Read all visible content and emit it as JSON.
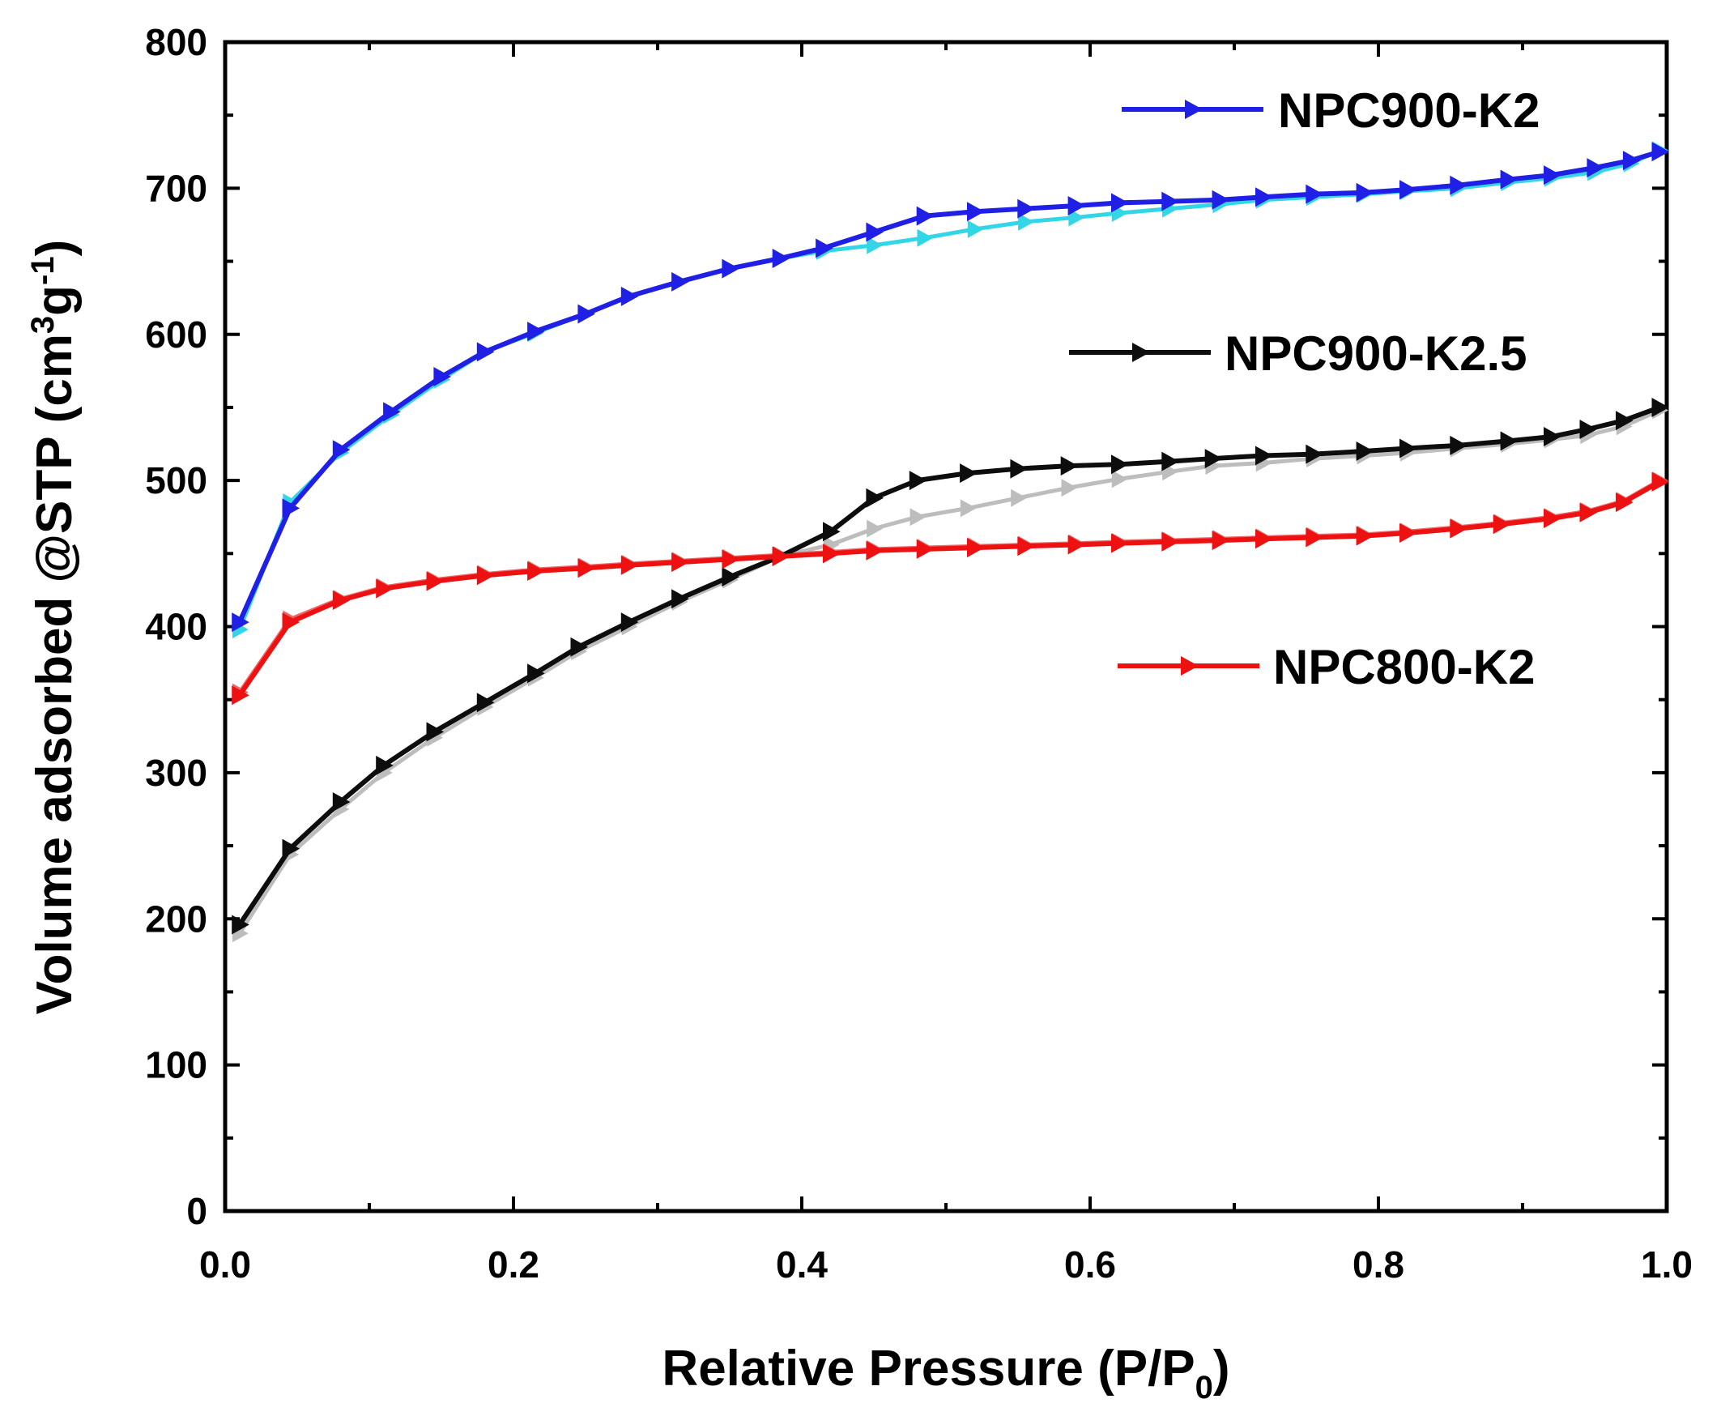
{
  "chart_data": {
    "type": "line",
    "title": "",
    "xlabel": "Relative Pressure (P/P",
    "xlabel_sub": "0",
    "xlabel_end": ")",
    "ylabel": "Volume adsorbed @STP (cm",
    "ylabel_sup1": "3",
    "ylabel_mid": "g",
    "ylabel_sup2": "-1",
    "ylabel_end": ")",
    "xlim": [
      0.0,
      1.0
    ],
    "ylim": [
      0,
      800
    ],
    "xticks": [
      0.0,
      0.2,
      0.4,
      0.6,
      0.8,
      1.0
    ],
    "xtick_labels": [
      "0.0",
      "0.2",
      "0.4",
      "0.6",
      "0.8",
      "1.0"
    ],
    "yticks": [
      0,
      100,
      200,
      300,
      400,
      500,
      600,
      700,
      800
    ],
    "ytick_labels": [
      "0",
      "100",
      "200",
      "300",
      "400",
      "500",
      "600",
      "700",
      "800"
    ],
    "grid": false,
    "legend_placement": "right",
    "series": [
      {
        "name": "NPC900-K2",
        "color": "#1f1fe6",
        "desorption_color": "#33d6e6",
        "adsorption": {
          "x": [
            0.01,
            0.045,
            0.08,
            0.115,
            0.15,
            0.18,
            0.215,
            0.25,
            0.28,
            0.315,
            0.35,
            0.385,
            0.415,
            0.45,
            0.485,
            0.52,
            0.555,
            0.59,
            0.62,
            0.655,
            0.69,
            0.72,
            0.755,
            0.79,
            0.82,
            0.855,
            0.89,
            0.92,
            0.95,
            0.975,
            0.995
          ],
          "y": [
            403,
            481,
            521,
            547,
            571,
            588,
            602,
            614,
            626,
            636,
            645,
            652,
            659,
            670,
            681,
            684,
            686,
            688,
            690,
            691,
            692,
            694,
            696,
            697,
            699,
            702,
            706,
            709,
            714,
            719,
            725
          ]
        },
        "desorption": {
          "x": [
            0.995,
            0.975,
            0.95,
            0.92,
            0.89,
            0.855,
            0.82,
            0.79,
            0.755,
            0.72,
            0.69,
            0.655,
            0.62,
            0.59,
            0.555,
            0.52,
            0.485,
            0.45,
            0.415,
            0.385,
            0.35,
            0.315,
            0.28,
            0.25,
            0.215,
            0.18,
            0.15,
            0.115,
            0.08,
            0.045,
            0.01
          ],
          "y": [
            726,
            717,
            711,
            707,
            704,
            700,
            698,
            696,
            694,
            692,
            689,
            686,
            683,
            680,
            677,
            672,
            666,
            661,
            657,
            652,
            645,
            636,
            626,
            614,
            601,
            588,
            569,
            545,
            519,
            485,
            398
          ]
        }
      },
      {
        "name": "NPC900-K2.5",
        "color": "#0d0d0d",
        "desorption_color": "#bdbdbd",
        "adsorption": {
          "x": [
            0.01,
            0.045,
            0.08,
            0.11,
            0.145,
            0.18,
            0.215,
            0.245,
            0.28,
            0.315,
            0.35,
            0.385,
            0.42,
            0.45,
            0.48,
            0.515,
            0.55,
            0.585,
            0.62,
            0.655,
            0.685,
            0.72,
            0.755,
            0.79,
            0.82,
            0.855,
            0.89,
            0.92,
            0.945,
            0.97,
            0.995
          ],
          "y": [
            196,
            248,
            280,
            305,
            328,
            348,
            368,
            386,
            403,
            419,
            434,
            448,
            465,
            488,
            500,
            505,
            508,
            510,
            511,
            513,
            515,
            517,
            518,
            520,
            522,
            524,
            527,
            530,
            535,
            541,
            550
          ]
        },
        "desorption": {
          "x": [
            0.995,
            0.97,
            0.945,
            0.92,
            0.89,
            0.855,
            0.82,
            0.79,
            0.755,
            0.72,
            0.685,
            0.655,
            0.62,
            0.585,
            0.55,
            0.515,
            0.48,
            0.45,
            0.42,
            0.385,
            0.35,
            0.315,
            0.28,
            0.245,
            0.215,
            0.18,
            0.145,
            0.11,
            0.08,
            0.045,
            0.01
          ],
          "y": [
            548,
            537,
            531,
            528,
            525,
            522,
            519,
            517,
            515,
            512,
            510,
            506,
            501,
            495,
            488,
            481,
            475,
            467,
            456,
            448,
            432,
            417,
            400,
            383,
            365,
            345,
            324,
            300,
            275,
            244,
            190
          ]
        }
      },
      {
        "name": "NPC800-K2",
        "color": "#ee1111",
        "desorption_color": "#f06666",
        "adsorption": {
          "x": [
            0.01,
            0.045,
            0.08,
            0.11,
            0.145,
            0.18,
            0.215,
            0.25,
            0.28,
            0.315,
            0.35,
            0.385,
            0.42,
            0.45,
            0.485,
            0.52,
            0.555,
            0.59,
            0.62,
            0.655,
            0.69,
            0.72,
            0.755,
            0.79,
            0.82,
            0.855,
            0.885,
            0.92,
            0.945,
            0.97,
            0.995
          ],
          "y": [
            353,
            403,
            418,
            426,
            431,
            435,
            438,
            440,
            442,
            444,
            446,
            448,
            450,
            452,
            453,
            454,
            455,
            456,
            457,
            458,
            459,
            460,
            461,
            462,
            464,
            467,
            470,
            474,
            478,
            485,
            499
          ]
        },
        "desorption": {
          "x": [
            0.995,
            0.97,
            0.945,
            0.92,
            0.885,
            0.855,
            0.82,
            0.79,
            0.755,
            0.72,
            0.69,
            0.655,
            0.62,
            0.59,
            0.555,
            0.52,
            0.485,
            0.45,
            0.42,
            0.385,
            0.35,
            0.315,
            0.28,
            0.25,
            0.215,
            0.18,
            0.145,
            0.11,
            0.08,
            0.045,
            0.01
          ],
          "y": [
            500,
            486,
            479,
            475,
            471,
            468,
            465,
            463,
            462,
            461,
            460,
            459,
            458,
            457,
            456,
            455,
            454,
            453,
            451,
            449,
            447,
            445,
            443,
            441,
            439,
            436,
            432,
            427,
            419,
            405,
            355
          ]
        }
      }
    ]
  }
}
